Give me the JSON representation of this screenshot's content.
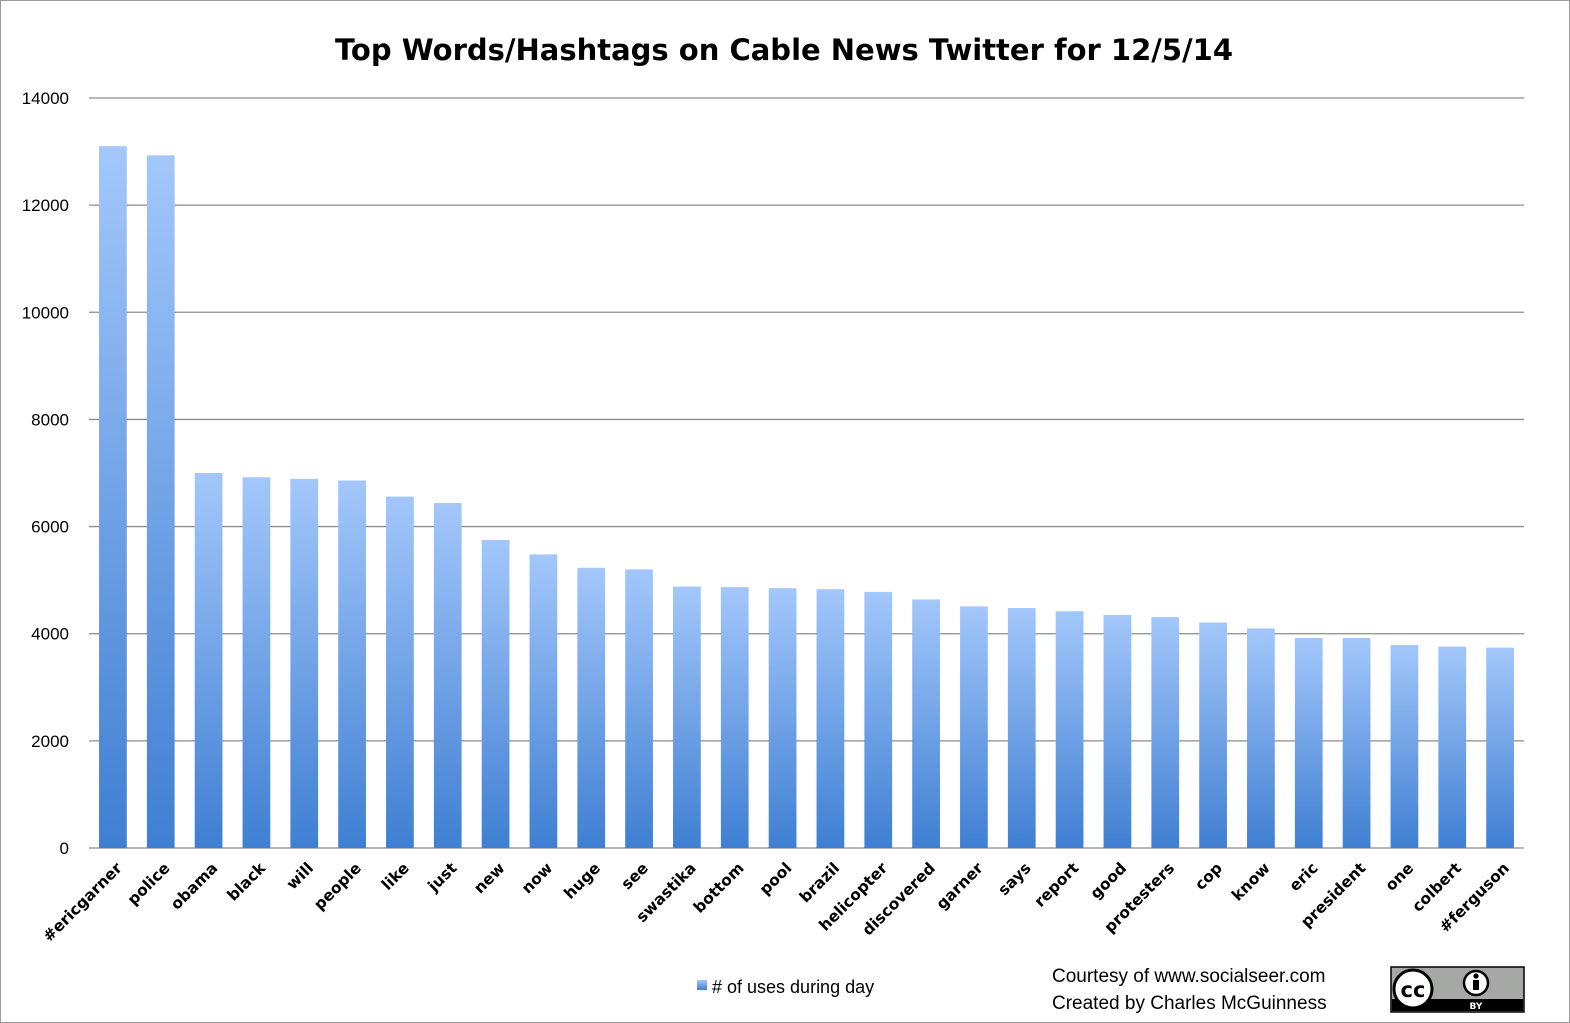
{
  "colors": {
    "bar_top": "#a3c7fb",
    "bar_bottom": "#3f7fd2",
    "gridline": "#8c8c8c"
  },
  "chart_data": {
    "type": "bar",
    "title": "Top Words/Hashtags on Cable News Twitter for 12/5/14",
    "xlabel": "",
    "ylabel": "",
    "ylim": [
      0,
      14000
    ],
    "yticks": [
      0,
      2000,
      4000,
      6000,
      8000,
      10000,
      12000,
      14000
    ],
    "grid": true,
    "legend_position": "bottom",
    "categories": [
      "#ericgarner",
      "police",
      "obama",
      "black",
      "will",
      "people",
      "like",
      "just",
      "new",
      "now",
      "huge",
      "see",
      "swastika",
      "bottom",
      "pool",
      "brazil",
      "helicopter",
      "discovered",
      "garner",
      "says",
      "report",
      "good",
      "protesters",
      "cop",
      "know",
      "eric",
      "president",
      "one",
      "colbert",
      "#ferguson"
    ],
    "series": [
      {
        "name": "# of uses during day",
        "values": [
          13100,
          12930,
          7000,
          6920,
          6890,
          6860,
          6560,
          6440,
          5750,
          5480,
          5230,
          5200,
          4880,
          4870,
          4850,
          4830,
          4780,
          4640,
          4510,
          4480,
          4420,
          4350,
          4310,
          4210,
          4100,
          3920,
          3920,
          3790,
          3760,
          3740
        ]
      }
    ]
  },
  "credits": {
    "line1": "Courtesy of www.socialseer.com",
    "line2": "Created by Charles McGuinness"
  },
  "license_badge": {
    "icon": "creative-commons-by-icon",
    "cc_text": "cc",
    "by_text": "BY"
  }
}
